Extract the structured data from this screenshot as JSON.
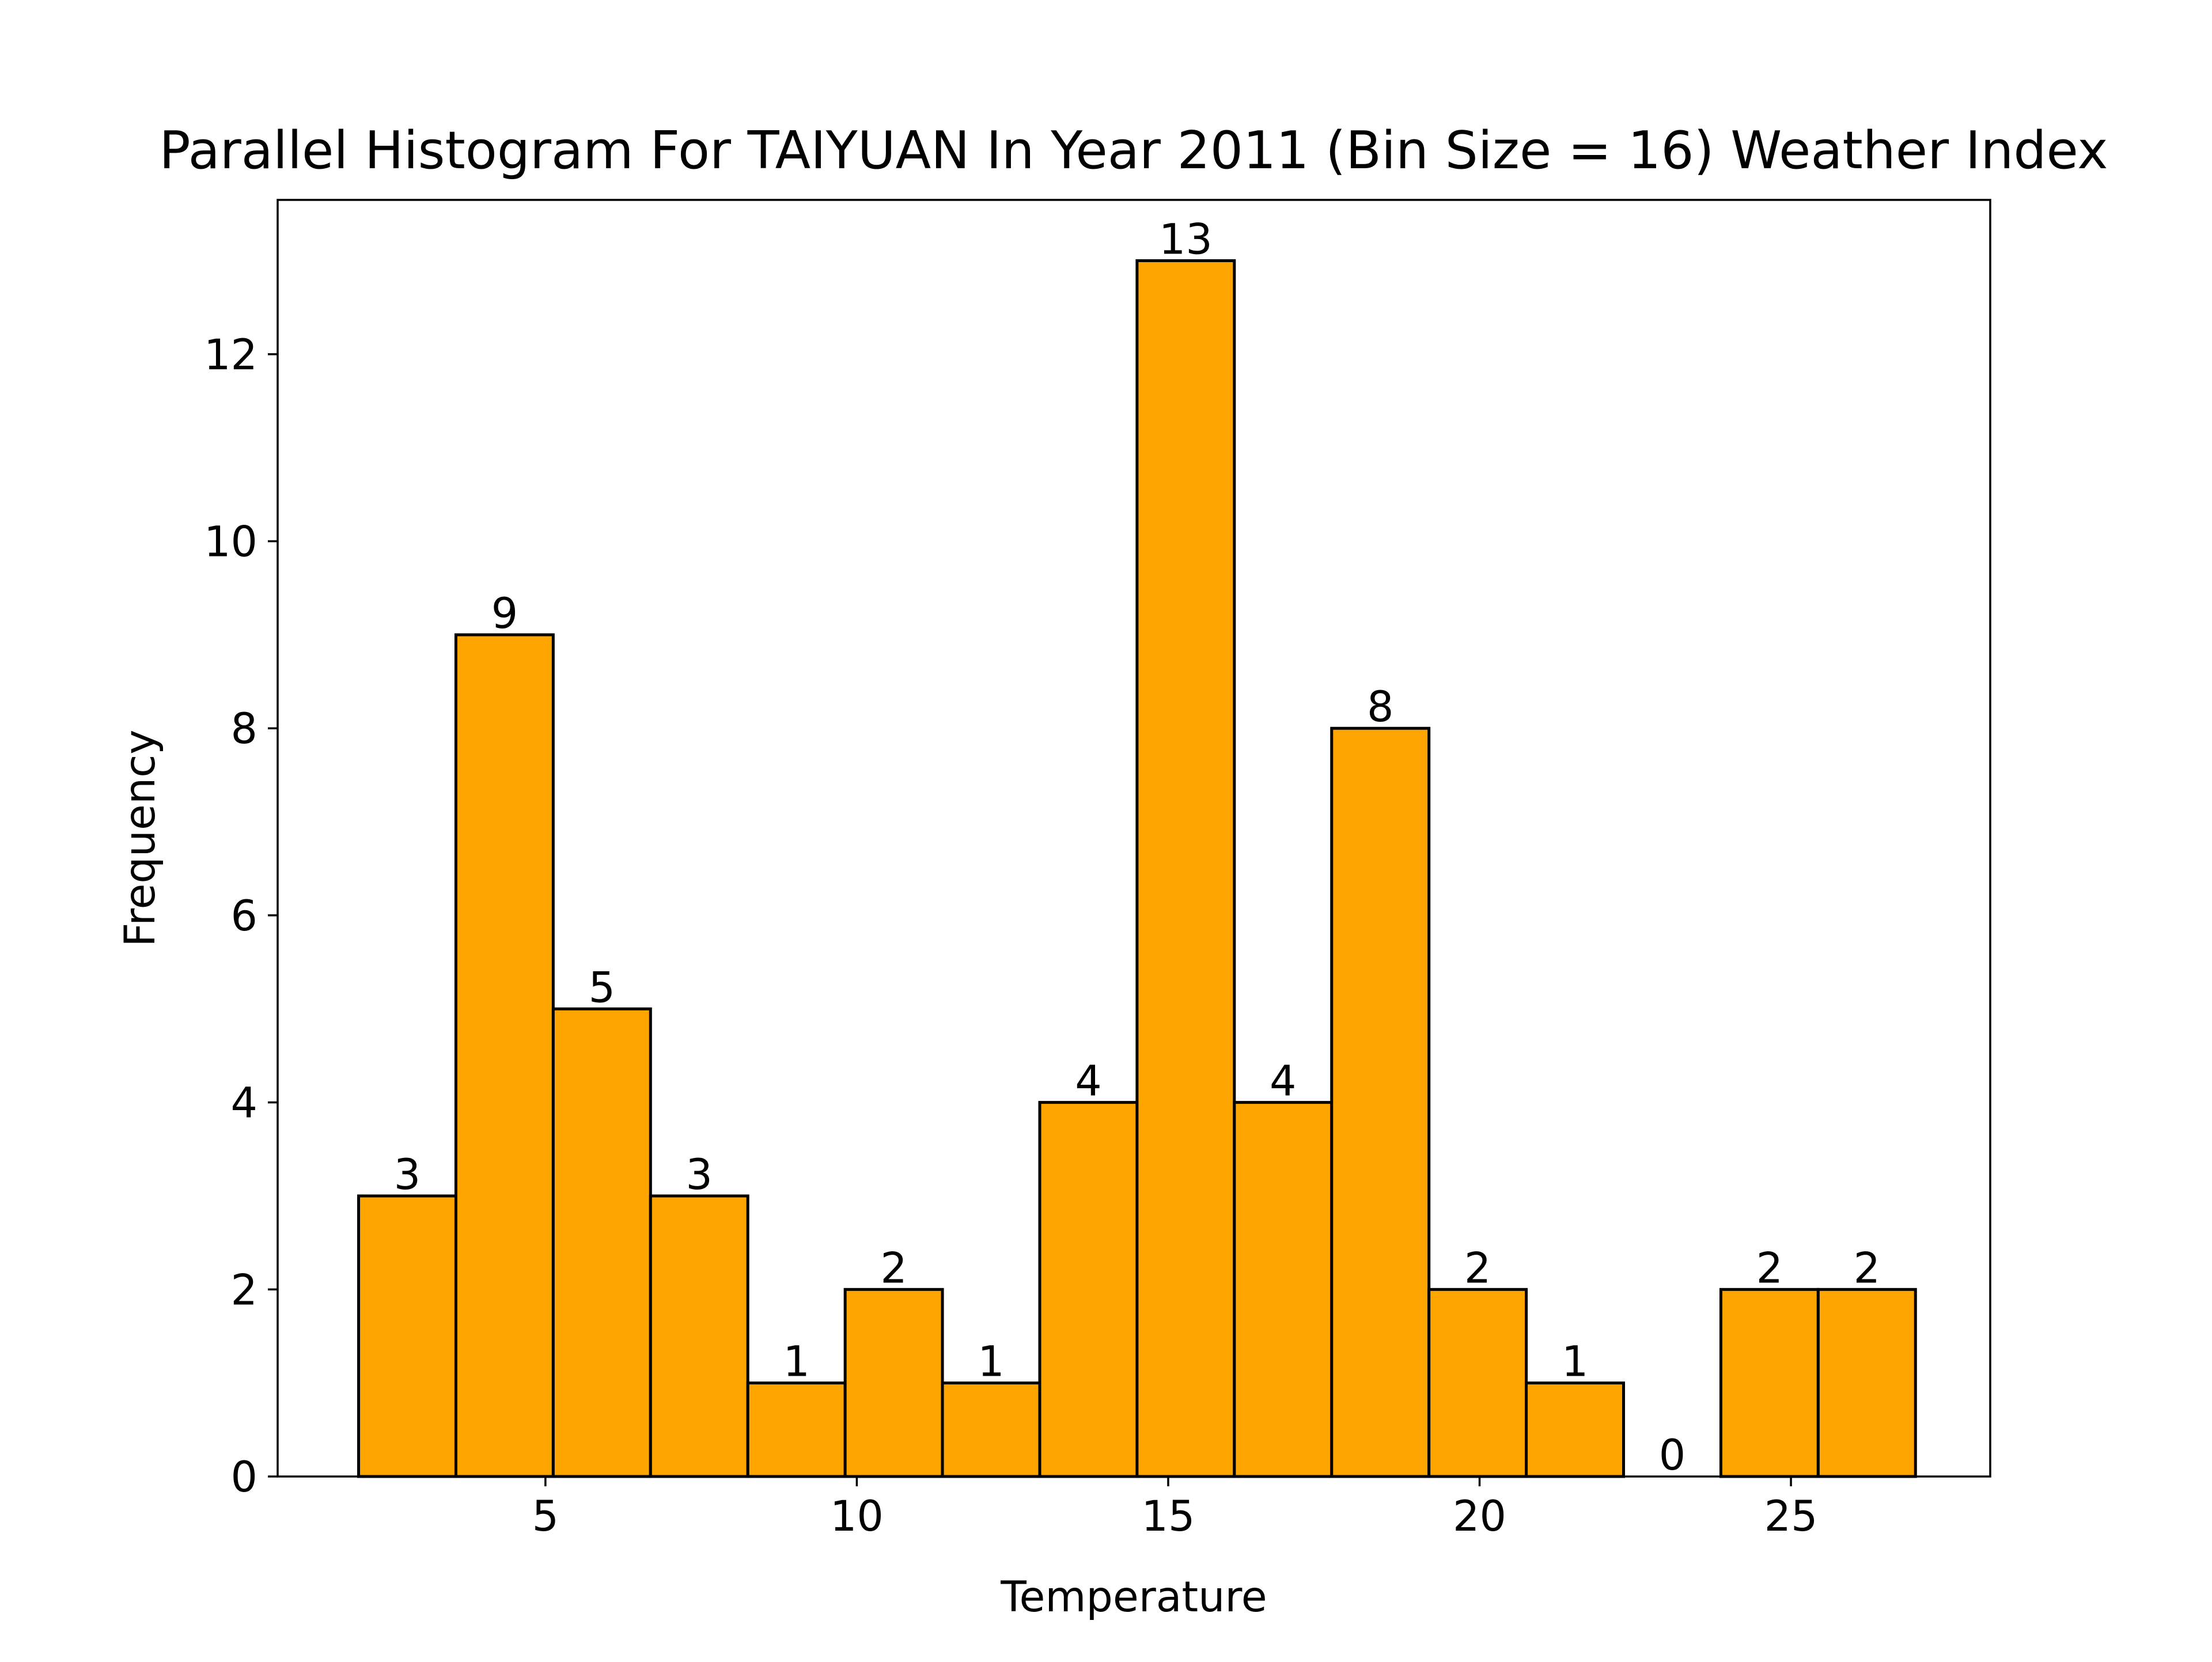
{
  "chart_data": {
    "type": "bar",
    "title": "Parallel Histogram For TAIYUAN In Year 2011 (Bin Size = 16) Weather Index",
    "xlabel": "Temperature",
    "ylabel": "Frequency",
    "xlim": [
      0.7,
      28.2
    ],
    "ylim": [
      0,
      13.65
    ],
    "x_ticks": [
      5,
      10,
      15,
      20,
      25
    ],
    "y_ticks": [
      0,
      2,
      4,
      6,
      8,
      10,
      12
    ],
    "grid": false,
    "legend": "none",
    "bin_edges": [
      2.0,
      3.5625,
      5.125,
      6.6875,
      8.25,
      9.8125,
      11.375,
      12.9375,
      14.5,
      16.0625,
      17.625,
      19.1875,
      20.75,
      22.3125,
      23.875,
      25.4375,
      27.0
    ],
    "values": [
      3,
      9,
      5,
      3,
      1,
      2,
      1,
      4,
      13,
      4,
      8,
      2,
      1,
      0,
      2,
      2
    ],
    "bar_color": "#FFA500",
    "edge_color": "#000000"
  }
}
